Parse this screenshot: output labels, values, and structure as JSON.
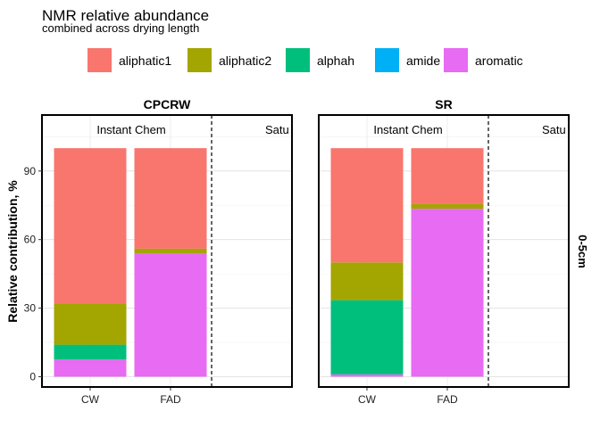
{
  "chart_data": {
    "type": "bar",
    "stacked": true,
    "title": "NMR relative abundance",
    "subtitle": "combined across drying length",
    "ylabel": "Relative contribution, %",
    "xlabel": "",
    "ylim": [
      0,
      100
    ],
    "yticks": [
      0,
      30,
      60,
      90
    ],
    "categories": [
      "CW",
      "FAD"
    ],
    "row_facet": "0-5cm",
    "legend_position": "top",
    "grid": true,
    "series": [
      {
        "name": "aliphatic1",
        "color": "#F8766D"
      },
      {
        "name": "aliphatic2",
        "color": "#A3A500"
      },
      {
        "name": "alphah",
        "color": "#00BF7D"
      },
      {
        "name": "amide",
        "color": "#00B0F6"
      },
      {
        "name": "aromatic",
        "color": "#E76BF3"
      }
    ],
    "panels": [
      {
        "title": "CPCRW",
        "left_annotation": "Instant Chem",
        "right_annotation": "Satu",
        "values": {
          "CW": {
            "aromatic": 7.5,
            "amide": 0,
            "alphah": 6.5,
            "aliphatic2": 18,
            "aliphatic1": 68
          },
          "FAD": {
            "aromatic": 54,
            "amide": 0,
            "alphah": 0,
            "aliphatic2": 2,
            "aliphatic1": 44
          }
        }
      },
      {
        "title": "SR",
        "left_annotation": "Instant Chem",
        "right_annotation": "Satu",
        "values": {
          "CW": {
            "aromatic": 1,
            "amide": 0,
            "alphah": 32.5,
            "aliphatic2": 16.5,
            "aliphatic1": 50
          },
          "FAD": {
            "aromatic": 73.5,
            "amide": 0,
            "alphah": 0,
            "aliphatic2": 2,
            "aliphatic1": 24.5
          }
        }
      }
    ]
  }
}
